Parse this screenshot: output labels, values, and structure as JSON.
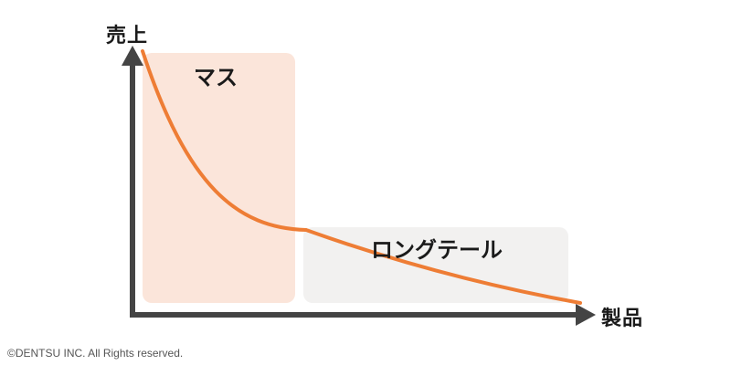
{
  "diagram": {
    "y_axis_label": "売上",
    "x_axis_label": "製品",
    "regions": {
      "mass": {
        "label": "マス",
        "fill": "#fbe5da"
      },
      "long_tail": {
        "label": "ロングテール",
        "fill": "#f2f1f0"
      }
    },
    "curve_color": "#ee7d35",
    "axis_color": "#444444"
  },
  "footer": {
    "copyright": "©DENTSU INC. All Rights reserved."
  }
}
